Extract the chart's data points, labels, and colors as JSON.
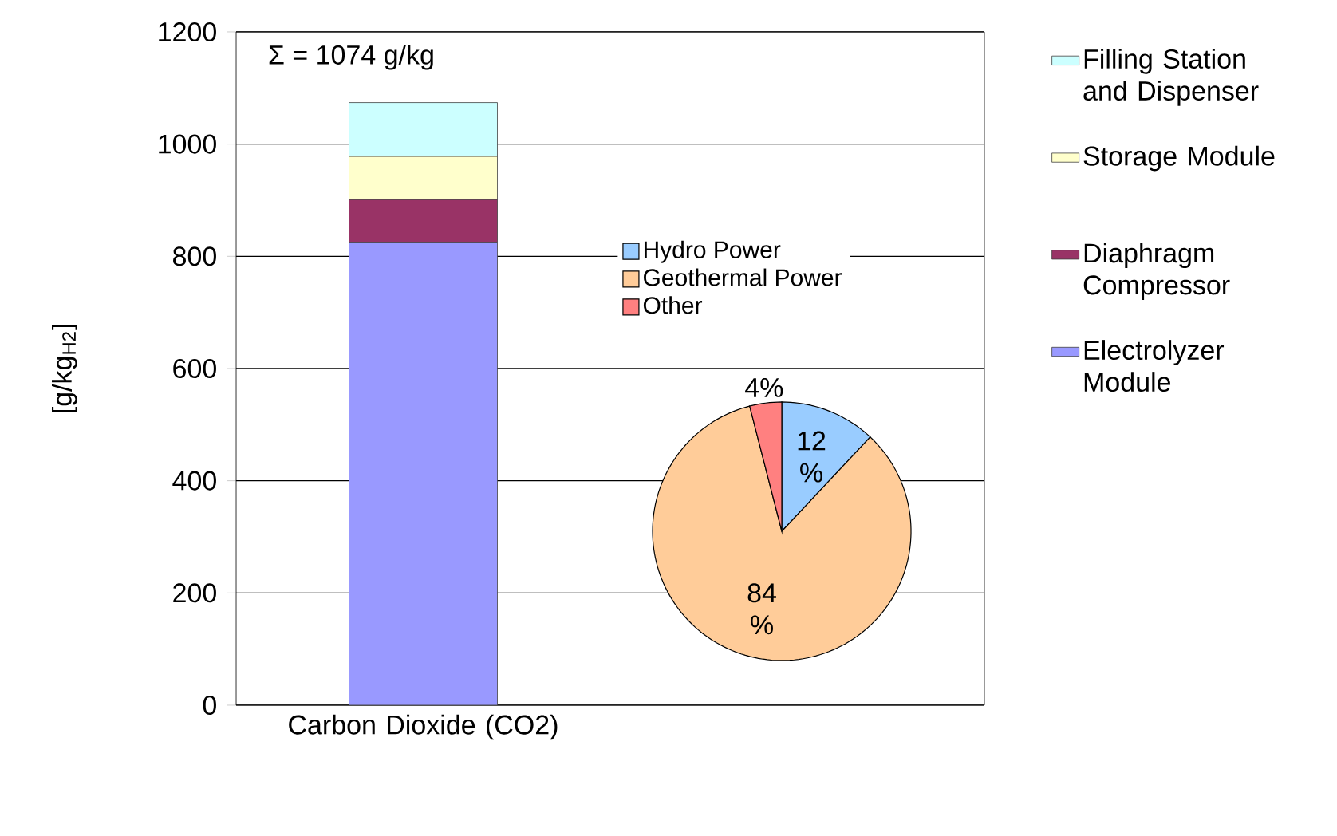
{
  "chart_data": [
    {
      "type": "bar",
      "stacked": true,
      "ylabel": "[g/kg$_{H2}$]",
      "categories": [
        "Carbon Dioxide (CO2)",
        null
      ],
      "series": [
        {
          "name": "Electrolyzer Module",
          "color": "#9999ff",
          "values": [
            825,
            null
          ]
        },
        {
          "name": "Diaphragm Compressor",
          "color": "#993366",
          "values": [
            76,
            null
          ]
        },
        {
          "name": "Storage Module",
          "color": "#ffffcc",
          "values": [
            77,
            null
          ]
        },
        {
          "name": "Filling Station and Dispenser",
          "color": "#ccffff",
          "values": [
            96,
            null
          ]
        }
      ],
      "ylim": [
        0,
        1200
      ],
      "yticks": [
        0,
        200,
        400,
        600,
        800,
        1000,
        1200
      ],
      "grid": "y",
      "legend": "right",
      "annotations": [
        "Σ = 1074 g/kg"
      ]
    },
    {
      "type": "pie",
      "categories": [
        "Hydro Power",
        "Geothermal Power",
        "Other"
      ],
      "values": [
        12,
        84,
        4
      ],
      "colors": [
        "#99ccff",
        "#ffcc99",
        "#ff8080"
      ],
      "value_labels": [
        "12 %",
        "84 %",
        "4%"
      ],
      "legend": "top"
    }
  ]
}
